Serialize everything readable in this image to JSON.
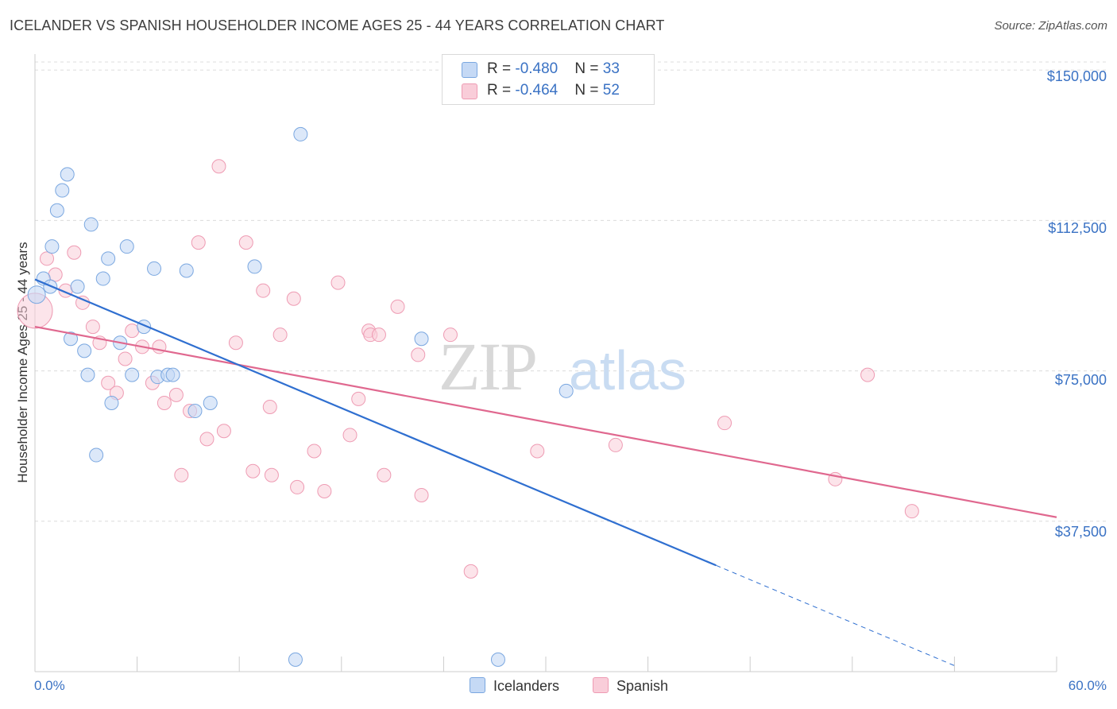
{
  "title": "ICELANDER VS SPANISH HOUSEHOLDER INCOME AGES 25 - 44 YEARS CORRELATION CHART",
  "source": "Source: ZipAtlas.com",
  "watermark": {
    "zip": "ZIP",
    "atlas": "atlas"
  },
  "colors": {
    "icelanders_fill": "#c5d9f5",
    "icelanders_stroke": "#7aa7e0",
    "icelanders_line": "#2f6fd0",
    "spanish_fill": "#f9cdd9",
    "spanish_stroke": "#ee9bb3",
    "spanish_line": "#e0688f",
    "tick_text": "#3a72c4",
    "grid": "#dcdcdc"
  },
  "legend": {
    "rows": [
      {
        "r_label": "R = ",
        "r_value": "-0.480",
        "n_label": "N = ",
        "n_value": "33"
      },
      {
        "r_label": "R = ",
        "r_value": "-0.464",
        "n_label": "N = ",
        "n_value": "52"
      }
    ]
  },
  "bottom_legend": {
    "icelanders": "Icelanders",
    "spanish": "Spanish"
  },
  "chart_data": {
    "type": "scatter",
    "title": "ICELANDER VS SPANISH HOUSEHOLDER INCOME AGES 25 - 44 YEARS CORRELATION CHART",
    "xlabel": "",
    "ylabel": "Householder Income Ages 25 - 44 years",
    "x_tick_labels": [
      "0.0%",
      "60.0%"
    ],
    "y_tick_labels": [
      "$150,000",
      "$112,500",
      "$75,000",
      "$37,500"
    ],
    "y_ticks": [
      150000,
      112500,
      75000,
      37500
    ],
    "xlim": [
      0,
      60
    ],
    "ylim": [
      0,
      154000
    ],
    "grid": "horizontal dashed",
    "legend_placement": "top-center",
    "series": [
      {
        "name": "Icelanders",
        "r": -0.48,
        "n": 33,
        "trend": {
          "x0": 0,
          "y0": 97800,
          "x1": 40,
          "y1": 26500,
          "dashed_to_x": 54,
          "dashed_to_y": 1500
        },
        "points": [
          [
            0.1,
            94000
          ],
          [
            0.5,
            98000
          ],
          [
            0.9,
            96000
          ],
          [
            1.0,
            106000
          ],
          [
            1.3,
            115000
          ],
          [
            1.6,
            120000
          ],
          [
            1.9,
            124000
          ],
          [
            2.1,
            83000
          ],
          [
            2.5,
            96000
          ],
          [
            2.9,
            80000
          ],
          [
            3.1,
            74000
          ],
          [
            3.3,
            111500
          ],
          [
            3.6,
            54000
          ],
          [
            4.0,
            98000
          ],
          [
            4.3,
            103000
          ],
          [
            4.5,
            67000
          ],
          [
            5.0,
            82000
          ],
          [
            5.4,
            106000
          ],
          [
            5.7,
            74000
          ],
          [
            6.4,
            86000
          ],
          [
            7.0,
            100500
          ],
          [
            7.2,
            73500
          ],
          [
            7.8,
            74000
          ],
          [
            8.1,
            74000
          ],
          [
            8.9,
            100000
          ],
          [
            9.4,
            65000
          ],
          [
            10.3,
            67000
          ],
          [
            12.9,
            101000
          ],
          [
            15.3,
            3000
          ],
          [
            15.6,
            134000
          ],
          [
            22.7,
            83000
          ],
          [
            27.2,
            3000
          ],
          [
            31.2,
            70000
          ]
        ]
      },
      {
        "name": "Spanish",
        "r": -0.464,
        "n": 52,
        "trend": {
          "x0": 0,
          "y0": 86000,
          "x1": 60,
          "y1": 38500
        },
        "points": [
          [
            0.0,
            90000
          ],
          [
            0.7,
            103000
          ],
          [
            1.2,
            99000
          ],
          [
            1.8,
            95000
          ],
          [
            2.3,
            104500
          ],
          [
            2.8,
            92000
          ],
          [
            3.4,
            86000
          ],
          [
            3.8,
            82000
          ],
          [
            4.3,
            72000
          ],
          [
            4.8,
            69500
          ],
          [
            5.3,
            78000
          ],
          [
            5.7,
            85000
          ],
          [
            6.3,
            81000
          ],
          [
            6.9,
            72000
          ],
          [
            7.3,
            81000
          ],
          [
            7.6,
            67000
          ],
          [
            8.3,
            69000
          ],
          [
            8.6,
            49000
          ],
          [
            9.1,
            65000
          ],
          [
            9.6,
            107000
          ],
          [
            10.1,
            58000
          ],
          [
            10.8,
            126000
          ],
          [
            11.1,
            60000
          ],
          [
            11.8,
            82000
          ],
          [
            12.4,
            107000
          ],
          [
            12.8,
            50000
          ],
          [
            13.4,
            95000
          ],
          [
            13.8,
            66000
          ],
          [
            13.9,
            49000
          ],
          [
            14.4,
            84000
          ],
          [
            15.2,
            93000
          ],
          [
            15.4,
            46000
          ],
          [
            16.4,
            55000
          ],
          [
            17.0,
            45000
          ],
          [
            17.8,
            97000
          ],
          [
            18.5,
            59000
          ],
          [
            19.0,
            68000
          ],
          [
            19.6,
            85000
          ],
          [
            19.7,
            84000
          ],
          [
            20.2,
            84000
          ],
          [
            20.5,
            49000
          ],
          [
            21.3,
            91000
          ],
          [
            22.7,
            44000
          ],
          [
            22.5,
            79000
          ],
          [
            24.4,
            84000
          ],
          [
            25.6,
            25000
          ],
          [
            29.5,
            55000
          ],
          [
            34.1,
            56500
          ],
          [
            40.5,
            62000
          ],
          [
            47.0,
            48000
          ],
          [
            48.9,
            74000
          ],
          [
            51.5,
            40000
          ]
        ]
      }
    ]
  }
}
